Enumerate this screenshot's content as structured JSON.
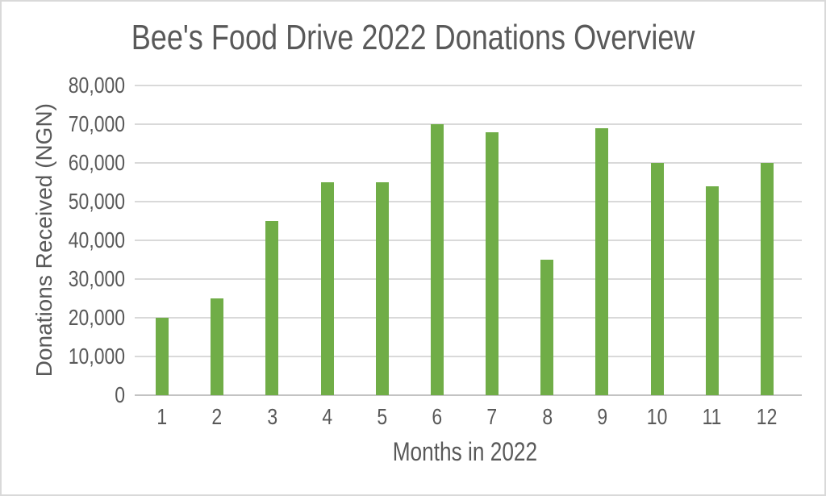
{
  "chart_data": {
    "type": "bar",
    "title": "Bee's Food Drive 2022 Donations Overview",
    "xlabel": "Months in 2022",
    "ylabel": "Donations Received (NGN)",
    "categories": [
      "1",
      "2",
      "3",
      "4",
      "5",
      "6",
      "7",
      "8",
      "9",
      "10",
      "11",
      "12"
    ],
    "values": [
      20000,
      25000,
      45000,
      55000,
      55000,
      70000,
      68000,
      35000,
      69000,
      60000,
      54000,
      60000
    ],
    "ylim": [
      0,
      80000
    ],
    "ytick_step": 10000,
    "ytick_labels": [
      "0",
      "10,000",
      "20,000",
      "30,000",
      "40,000",
      "50,000",
      "60,000",
      "70,000",
      "80,000"
    ],
    "grid": "horizontal",
    "legend_position": "none",
    "colors": {
      "bar": "#70ad47",
      "gridline": "#d9d9d9",
      "axis_line": "#c3c3c3",
      "text": "#595959",
      "canvas_border": "#d9d9d9",
      "background": "#ffffff"
    }
  }
}
